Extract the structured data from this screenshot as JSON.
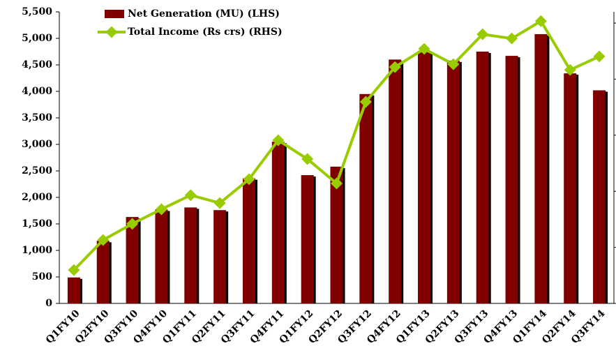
{
  "chart_data": {
    "type": "bar_line",
    "categories": [
      "Q1FY10",
      "Q2FY10",
      "Q3FY10",
      "Q4FY10",
      "Q1FY11",
      "Q2FY11",
      "Q3FY11",
      "Q4FY11",
      "Q1FY12",
      "Q2FY12",
      "Q3FY12",
      "Q4FY12",
      "Q1FY13",
      "Q2FY13",
      "Q3FY13",
      "Q4FY13",
      "Q1FY14",
      "Q2FY14",
      "Q3FY14"
    ],
    "series": [
      {
        "name": "Net Generation (MU) (LHS)",
        "color": "#800000",
        "type": "bar",
        "values": [
          490,
          1180,
          1630,
          1770,
          1810,
          1760,
          2360,
          3050,
          2420,
          2580,
          3950,
          4600,
          4740,
          4580,
          4750,
          4670,
          5080,
          4340,
          4020
        ]
      },
      {
        "name": "Total Income (Rs crs) (RHS)",
        "color": "#99cc00",
        "type": "line",
        "axis": "y2",
        "values": [
          119,
          226,
          284,
          336,
          386,
          358,
          443,
          582,
          515,
          428,
          719,
          843,
          908,
          853,
          960,
          945,
          1007,
          833,
          881
        ]
      }
    ],
    "ylim": [
      0,
      5500
    ],
    "yticks": [
      0,
      {
        "value": 500,
        "label": "500"
      },
      {
        "value": 1000,
        "label": "1,000"
      },
      {
        "value": 1500,
        "label": "1,500"
      },
      {
        "value": 2000,
        "label": "2,000"
      },
      {
        "value": 2500,
        "label": "2,500"
      },
      {
        "value": 3000,
        "label": "3,000"
      },
      {
        "value": 3500,
        "label": "3,500"
      },
      {
        "value": 4000,
        "label": "4,000"
      },
      {
        "value": 4500,
        "label": "4,500"
      },
      {
        "value": 5000,
        "label": "5,000"
      },
      {
        "value": 5500,
        "label": "5,500"
      }
    ],
    "y2lim": [
      0,
      1040
    ],
    "y2ticks": [
      0,
      200,
      400,
      600,
      800,
      1000
    ],
    "legend": "top-left"
  }
}
